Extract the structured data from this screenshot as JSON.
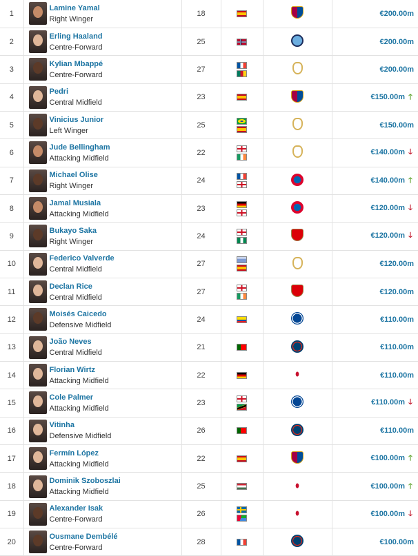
{
  "colors": {
    "link": "#1d75a3",
    "up": "#5ca12a",
    "down": "#c0162a"
  },
  "rows": [
    {
      "rank": "1",
      "name": "Lamine Yamal",
      "position": "Right Winger",
      "age": "18",
      "nationalities": [
        "es"
      ],
      "club": "barca",
      "value": "€200.00m",
      "trend": "none",
      "skin": "mid"
    },
    {
      "rank": "2",
      "name": "Erling Haaland",
      "position": "Centre-Forward",
      "age": "25",
      "nationalities": [
        "no"
      ],
      "club": "city",
      "value": "€200.00m",
      "trend": "none",
      "skin": "light"
    },
    {
      "rank": "3",
      "name": "Kylian Mbappé",
      "position": "Centre-Forward",
      "age": "27",
      "nationalities": [
        "fr",
        "cm"
      ],
      "club": "real",
      "value": "€200.00m",
      "trend": "none",
      "skin": "dark"
    },
    {
      "rank": "4",
      "name": "Pedri",
      "position": "Central Midfield",
      "age": "23",
      "nationalities": [
        "es"
      ],
      "club": "barca",
      "value": "€150.00m",
      "trend": "up",
      "skin": "light"
    },
    {
      "rank": "5",
      "name": "Vinicius Junior",
      "position": "Left Winger",
      "age": "25",
      "nationalities": [
        "br",
        "es"
      ],
      "club": "real",
      "value": "€150.00m",
      "trend": "none",
      "skin": "dark"
    },
    {
      "rank": "6",
      "name": "Jude Bellingham",
      "position": "Attacking Midfield",
      "age": "22",
      "nationalities": [
        "eng",
        "ie"
      ],
      "club": "real",
      "value": "€140.00m",
      "trend": "down",
      "skin": "mid"
    },
    {
      "rank": "7",
      "name": "Michael Olise",
      "position": "Right Winger",
      "age": "24",
      "nationalities": [
        "fr",
        "eng"
      ],
      "club": "bayern",
      "value": "€140.00m",
      "trend": "up",
      "skin": "dark"
    },
    {
      "rank": "8",
      "name": "Jamal Musiala",
      "position": "Attacking Midfield",
      "age": "23",
      "nationalities": [
        "de",
        "eng"
      ],
      "club": "bayern",
      "value": "€120.00m",
      "trend": "down",
      "skin": "mid"
    },
    {
      "rank": "9",
      "name": "Bukayo Saka",
      "position": "Right Winger",
      "age": "24",
      "nationalities": [
        "eng",
        "ng"
      ],
      "club": "arsenal",
      "value": "€120.00m",
      "trend": "down",
      "skin": "dark"
    },
    {
      "rank": "10",
      "name": "Federico Valverde",
      "position": "Central Midfield",
      "age": "27",
      "nationalities": [
        "uy",
        "es"
      ],
      "club": "real",
      "value": "€120.00m",
      "trend": "none",
      "skin": "light"
    },
    {
      "rank": "11",
      "name": "Declan Rice",
      "position": "Central Midfield",
      "age": "27",
      "nationalities": [
        "eng",
        "ie"
      ],
      "club": "arsenal",
      "value": "€120.00m",
      "trend": "none",
      "skin": "light"
    },
    {
      "rank": "12",
      "name": "Moisés Caicedo",
      "position": "Defensive Midfield",
      "age": "24",
      "nationalities": [
        "ec"
      ],
      "club": "chelsea",
      "value": "€110.00m",
      "trend": "none",
      "skin": "dark"
    },
    {
      "rank": "13",
      "name": "João Neves",
      "position": "Central Midfield",
      "age": "21",
      "nationalities": [
        "pt"
      ],
      "club": "psg",
      "value": "€110.00m",
      "trend": "none",
      "skin": "light"
    },
    {
      "rank": "14",
      "name": "Florian Wirtz",
      "position": "Attacking Midfield",
      "age": "22",
      "nationalities": [
        "de"
      ],
      "club": "liv",
      "value": "€110.00m",
      "trend": "none",
      "skin": "light"
    },
    {
      "rank": "15",
      "name": "Cole Palmer",
      "position": "Attacking Midfield",
      "age": "23",
      "nationalities": [
        "eng",
        "kn"
      ],
      "club": "chelsea",
      "value": "€110.00m",
      "trend": "down",
      "skin": "light"
    },
    {
      "rank": "16",
      "name": "Vitinha",
      "position": "Defensive Midfield",
      "age": "26",
      "nationalities": [
        "pt"
      ],
      "club": "psg",
      "value": "€110.00m",
      "trend": "none",
      "skin": "light"
    },
    {
      "rank": "17",
      "name": "Fermín López",
      "position": "Attacking Midfield",
      "age": "22",
      "nationalities": [
        "es"
      ],
      "club": "barca",
      "value": "€100.00m",
      "trend": "up",
      "skin": "light"
    },
    {
      "rank": "18",
      "name": "Dominik Szoboszlai",
      "position": "Attacking Midfield",
      "age": "25",
      "nationalities": [
        "hu"
      ],
      "club": "liv",
      "value": "€100.00m",
      "trend": "up",
      "skin": "light"
    },
    {
      "rank": "19",
      "name": "Alexander Isak",
      "position": "Centre-Forward",
      "age": "26",
      "nationalities": [
        "se",
        "er"
      ],
      "club": "liv",
      "value": "€100.00m",
      "trend": "down",
      "skin": "dark"
    },
    {
      "rank": "20",
      "name": "Ousmane Dembélé",
      "position": "Centre-Forward",
      "age": "28",
      "nationalities": [
        "fr"
      ],
      "club": "psg",
      "value": "€100.00m",
      "trend": "none",
      "skin": "dark"
    }
  ]
}
